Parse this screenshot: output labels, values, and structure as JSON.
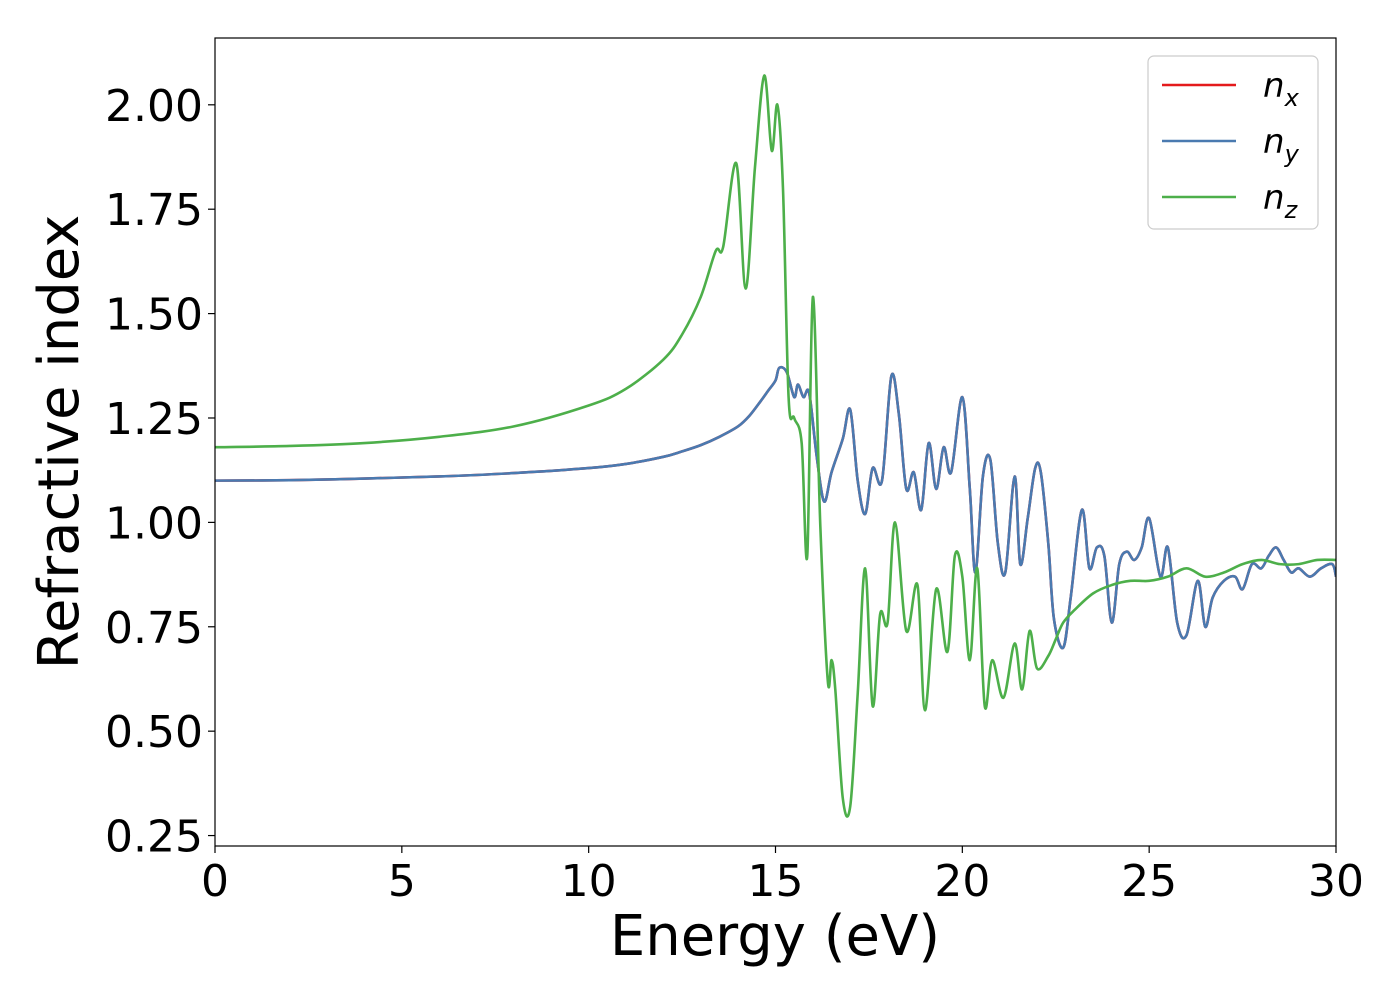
{
  "chart_data": {
    "type": "line",
    "title": "",
    "xlabel": "Energy (eV)",
    "ylabel": "Refractive index",
    "xlim": [
      0,
      30
    ],
    "ylim": [
      0.225,
      2.16
    ],
    "xticks": [
      0,
      5,
      10,
      15,
      20,
      25,
      30
    ],
    "xtick_labels": [
      "0",
      "5",
      "10",
      "15",
      "20",
      "25",
      "30"
    ],
    "yticks": [
      0.25,
      0.5,
      0.75,
      1.0,
      1.25,
      1.5,
      1.75,
      2.0
    ],
    "ytick_labels": [
      "0.25",
      "0.50",
      "0.75",
      "1.00",
      "1.25",
      "1.50",
      "1.75",
      "2.00"
    ],
    "grid": false,
    "legend_position": "top-right",
    "series": [
      {
        "name": "n",
        "subscript": "x",
        "color": "#e41a1c",
        "x": [
          0,
          2,
          4,
          6,
          8,
          10,
          11,
          12,
          12.5,
          13,
          13.5,
          14,
          14.3,
          14.6,
          14.8,
          15.0,
          15.1,
          15.3,
          15.5,
          15.6,
          15.75,
          15.9,
          16.1,
          16.3,
          16.5,
          16.8,
          17.0,
          17.2,
          17.4,
          17.6,
          17.85,
          18.1,
          18.3,
          18.5,
          18.7,
          18.9,
          19.1,
          19.3,
          19.5,
          19.7,
          20.0,
          20.2,
          20.35,
          20.55,
          20.75,
          20.95,
          21.15,
          21.4,
          21.55,
          21.75,
          21.95,
          22.1,
          22.3,
          22.45,
          22.7,
          22.9,
          23.2,
          23.4,
          23.6,
          23.8,
          24.0,
          24.2,
          24.4,
          24.6,
          24.8,
          25.0,
          25.3,
          25.5,
          25.75,
          26.0,
          26.3,
          26.5,
          26.7,
          27.0,
          27.3,
          27.5,
          27.75,
          28.0,
          28.2,
          28.4,
          28.6,
          28.8,
          29.0,
          29.3,
          29.6,
          29.9,
          30.0
        ],
        "y": [
          1.1,
          1.101,
          1.105,
          1.11,
          1.118,
          1.13,
          1.14,
          1.157,
          1.17,
          1.185,
          1.205,
          1.23,
          1.255,
          1.29,
          1.315,
          1.34,
          1.37,
          1.36,
          1.3,
          1.33,
          1.3,
          1.31,
          1.16,
          1.05,
          1.12,
          1.2,
          1.27,
          1.1,
          1.02,
          1.13,
          1.1,
          1.35,
          1.26,
          1.08,
          1.12,
          1.03,
          1.19,
          1.08,
          1.18,
          1.12,
          1.3,
          1.08,
          0.88,
          1.11,
          1.15,
          0.95,
          0.88,
          1.11,
          0.9,
          1.01,
          1.13,
          1.12,
          0.95,
          0.77,
          0.7,
          0.82,
          1.03,
          0.89,
          0.94,
          0.92,
          0.76,
          0.9,
          0.93,
          0.91,
          0.94,
          1.01,
          0.87,
          0.94,
          0.76,
          0.73,
          0.86,
          0.75,
          0.82,
          0.86,
          0.87,
          0.84,
          0.9,
          0.89,
          0.92,
          0.94,
          0.91,
          0.88,
          0.89,
          0.87,
          0.89,
          0.9,
          0.87
        ]
      },
      {
        "name": "n",
        "subscript": "y",
        "color": "#4a7ab0",
        "x": [
          0,
          2,
          4,
          6,
          8,
          10,
          11,
          12,
          12.5,
          13,
          13.5,
          14,
          14.3,
          14.6,
          14.8,
          15.0,
          15.1,
          15.3,
          15.5,
          15.6,
          15.75,
          15.9,
          16.1,
          16.3,
          16.5,
          16.8,
          17.0,
          17.2,
          17.4,
          17.6,
          17.85,
          18.1,
          18.3,
          18.5,
          18.7,
          18.9,
          19.1,
          19.3,
          19.5,
          19.7,
          20.0,
          20.2,
          20.35,
          20.55,
          20.75,
          20.95,
          21.15,
          21.4,
          21.55,
          21.75,
          21.95,
          22.1,
          22.3,
          22.45,
          22.7,
          22.9,
          23.2,
          23.4,
          23.6,
          23.8,
          24.0,
          24.2,
          24.4,
          24.6,
          24.8,
          25.0,
          25.3,
          25.5,
          25.75,
          26.0,
          26.3,
          26.5,
          26.7,
          27.0,
          27.3,
          27.5,
          27.75,
          28.0,
          28.2,
          28.4,
          28.6,
          28.8,
          29.0,
          29.3,
          29.6,
          29.9,
          30.0
        ],
        "y": [
          1.1,
          1.101,
          1.105,
          1.11,
          1.118,
          1.13,
          1.14,
          1.157,
          1.17,
          1.185,
          1.205,
          1.23,
          1.255,
          1.29,
          1.315,
          1.34,
          1.37,
          1.36,
          1.3,
          1.33,
          1.3,
          1.31,
          1.16,
          1.05,
          1.12,
          1.2,
          1.27,
          1.1,
          1.02,
          1.13,
          1.1,
          1.35,
          1.26,
          1.08,
          1.12,
          1.03,
          1.19,
          1.08,
          1.18,
          1.12,
          1.3,
          1.08,
          0.88,
          1.11,
          1.15,
          0.95,
          0.88,
          1.11,
          0.9,
          1.01,
          1.13,
          1.12,
          0.95,
          0.77,
          0.7,
          0.82,
          1.03,
          0.89,
          0.94,
          0.92,
          0.76,
          0.9,
          0.93,
          0.91,
          0.94,
          1.01,
          0.87,
          0.94,
          0.76,
          0.73,
          0.86,
          0.75,
          0.82,
          0.86,
          0.87,
          0.84,
          0.9,
          0.89,
          0.92,
          0.94,
          0.91,
          0.88,
          0.89,
          0.87,
          0.89,
          0.9,
          0.87
        ]
      },
      {
        "name": "n",
        "subscript": "z",
        "color": "#4daf4a",
        "x": [
          0,
          2,
          4,
          6,
          8,
          10,
          11,
          12,
          12.5,
          13,
          13.4,
          13.6,
          13.95,
          14.2,
          14.45,
          14.7,
          14.9,
          15.05,
          15.2,
          15.35,
          15.5,
          15.7,
          15.85,
          16.0,
          16.2,
          16.4,
          16.5,
          16.6,
          16.8,
          17.0,
          17.2,
          17.4,
          17.6,
          17.8,
          18.0,
          18.2,
          18.5,
          18.8,
          19.0,
          19.3,
          19.6,
          19.8,
          20.0,
          20.2,
          20.4,
          20.6,
          20.8,
          21.1,
          21.4,
          21.6,
          21.8,
          22.0,
          22.3,
          22.5,
          22.7,
          23.0,
          23.5,
          24.0,
          24.5,
          25.0,
          25.5,
          26.0,
          26.5,
          27.0,
          27.5,
          28.0,
          28.5,
          29.0,
          29.5,
          30.0
        ],
        "y": [
          1.18,
          1.183,
          1.19,
          1.205,
          1.23,
          1.28,
          1.32,
          1.39,
          1.45,
          1.54,
          1.65,
          1.66,
          1.86,
          1.56,
          1.85,
          2.07,
          1.89,
          2.0,
          1.8,
          1.3,
          1.25,
          1.19,
          0.92,
          1.54,
          0.99,
          0.62,
          0.67,
          0.6,
          0.34,
          0.32,
          0.59,
          0.89,
          0.56,
          0.78,
          0.76,
          1.0,
          0.74,
          0.85,
          0.55,
          0.84,
          0.69,
          0.92,
          0.87,
          0.67,
          0.89,
          0.56,
          0.67,
          0.58,
          0.71,
          0.6,
          0.74,
          0.65,
          0.68,
          0.72,
          0.76,
          0.79,
          0.83,
          0.85,
          0.86,
          0.86,
          0.87,
          0.89,
          0.87,
          0.88,
          0.9,
          0.91,
          0.9,
          0.9,
          0.91,
          0.91
        ]
      }
    ]
  }
}
